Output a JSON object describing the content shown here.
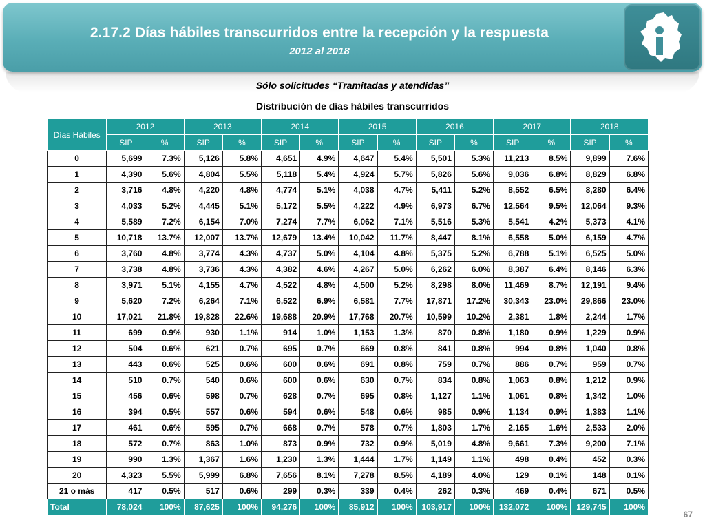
{
  "header": {
    "title": "2.17.2 Días hábiles transcurridos entre la recepción y la respuesta",
    "subtitle": "2012 al 2018",
    "logo_icon": "cdmx-map-info-icon"
  },
  "headings": {
    "filter": "Sólo solicitudes “Tramitadas y atendidas”",
    "table_title": "Distribución de días hábiles transcurridos"
  },
  "table": {
    "row_header": "Días Hábiles",
    "years": [
      "2012",
      "2013",
      "2014",
      "2015",
      "2016",
      "2017",
      "2018"
    ],
    "sub_headers": [
      "SIP",
      "%"
    ],
    "rows": [
      [
        "0",
        "5,699",
        "7.3%",
        "5,126",
        "5.8%",
        "4,651",
        "4.9%",
        "4,647",
        "5.4%",
        "5,501",
        "5.3%",
        "11,213",
        "8.5%",
        "9,899",
        "7.6%"
      ],
      [
        "1",
        "4,390",
        "5.6%",
        "4,804",
        "5.5%",
        "5,118",
        "5.4%",
        "4,924",
        "5.7%",
        "5,826",
        "5.6%",
        "9,036",
        "6.8%",
        "8,829",
        "6.8%"
      ],
      [
        "2",
        "3,716",
        "4.8%",
        "4,220",
        "4.8%",
        "4,774",
        "5.1%",
        "4,038",
        "4.7%",
        "5,411",
        "5.2%",
        "8,552",
        "6.5%",
        "8,280",
        "6.4%"
      ],
      [
        "3",
        "4,033",
        "5.2%",
        "4,445",
        "5.1%",
        "5,172",
        "5.5%",
        "4,222",
        "4.9%",
        "6,973",
        "6.7%",
        "12,564",
        "9.5%",
        "12,064",
        "9.3%"
      ],
      [
        "4",
        "5,589",
        "7.2%",
        "6,154",
        "7.0%",
        "7,274",
        "7.7%",
        "6,062",
        "7.1%",
        "5,516",
        "5.3%",
        "5,541",
        "4.2%",
        "5,373",
        "4.1%"
      ],
      [
        "5",
        "10,718",
        "13.7%",
        "12,007",
        "13.7%",
        "12,679",
        "13.4%",
        "10,042",
        "11.7%",
        "8,447",
        "8.1%",
        "6,558",
        "5.0%",
        "6,159",
        "4.7%"
      ],
      [
        "6",
        "3,760",
        "4.8%",
        "3,774",
        "4.3%",
        "4,737",
        "5.0%",
        "4,104",
        "4.8%",
        "5,375",
        "5.2%",
        "6,788",
        "5.1%",
        "6,525",
        "5.0%"
      ],
      [
        "7",
        "3,738",
        "4.8%",
        "3,736",
        "4.3%",
        "4,382",
        "4.6%",
        "4,267",
        "5.0%",
        "6,262",
        "6.0%",
        "8,387",
        "6.4%",
        "8,146",
        "6.3%"
      ],
      [
        "8",
        "3,971",
        "5.1%",
        "4,155",
        "4.7%",
        "4,522",
        "4.8%",
        "4,500",
        "5.2%",
        "8,298",
        "8.0%",
        "11,469",
        "8.7%",
        "12,191",
        "9.4%"
      ],
      [
        "9",
        "5,620",
        "7.2%",
        "6,264",
        "7.1%",
        "6,522",
        "6.9%",
        "6,581",
        "7.7%",
        "17,871",
        "17.2%",
        "30,343",
        "23.0%",
        "29,866",
        "23.0%"
      ],
      [
        "10",
        "17,021",
        "21.8%",
        "19,828",
        "22.6%",
        "19,688",
        "20.9%",
        "17,768",
        "20.7%",
        "10,599",
        "10.2%",
        "2,381",
        "1.8%",
        "2,244",
        "1.7%"
      ],
      [
        "11",
        "699",
        "0.9%",
        "930",
        "1.1%",
        "914",
        "1.0%",
        "1,153",
        "1.3%",
        "870",
        "0.8%",
        "1,180",
        "0.9%",
        "1,229",
        "0.9%"
      ],
      [
        "12",
        "504",
        "0.6%",
        "621",
        "0.7%",
        "695",
        "0.7%",
        "669",
        "0.8%",
        "841",
        "0.8%",
        "994",
        "0.8%",
        "1,040",
        "0.8%"
      ],
      [
        "13",
        "443",
        "0.6%",
        "525",
        "0.6%",
        "600",
        "0.6%",
        "691",
        "0.8%",
        "759",
        "0.7%",
        "886",
        "0.7%",
        "959",
        "0.7%"
      ],
      [
        "14",
        "510",
        "0.7%",
        "540",
        "0.6%",
        "600",
        "0.6%",
        "630",
        "0.7%",
        "834",
        "0.8%",
        "1,063",
        "0.8%",
        "1,212",
        "0.9%"
      ],
      [
        "15",
        "456",
        "0.6%",
        "598",
        "0.7%",
        "628",
        "0.7%",
        "695",
        "0.8%",
        "1,127",
        "1.1%",
        "1,061",
        "0.8%",
        "1,342",
        "1.0%"
      ],
      [
        "16",
        "394",
        "0.5%",
        "557",
        "0.6%",
        "594",
        "0.6%",
        "548",
        "0.6%",
        "985",
        "0.9%",
        "1,134",
        "0.9%",
        "1,383",
        "1.1%"
      ],
      [
        "17",
        "461",
        "0.6%",
        "595",
        "0.7%",
        "668",
        "0.7%",
        "578",
        "0.7%",
        "1,803",
        "1.7%",
        "2,165",
        "1.6%",
        "2,533",
        "2.0%"
      ],
      [
        "18",
        "572",
        "0.7%",
        "863",
        "1.0%",
        "873",
        "0.9%",
        "732",
        "0.9%",
        "5,019",
        "4.8%",
        "9,661",
        "7.3%",
        "9,200",
        "7.1%"
      ],
      [
        "19",
        "990",
        "1.3%",
        "1,367",
        "1.6%",
        "1,230",
        "1.3%",
        "1,444",
        "1.7%",
        "1,149",
        "1.1%",
        "498",
        "0.4%",
        "452",
        "0.3%"
      ],
      [
        "20",
        "4,323",
        "5.5%",
        "5,999",
        "6.8%",
        "7,656",
        "8.1%",
        "7,278",
        "8.5%",
        "4,189",
        "4.0%",
        "129",
        "0.1%",
        "148",
        "0.1%"
      ],
      [
        "21 o más",
        "417",
        "0.5%",
        "517",
        "0.6%",
        "299",
        "0.3%",
        "339",
        "0.4%",
        "262",
        "0.3%",
        "469",
        "0.4%",
        "671",
        "0.5%"
      ]
    ],
    "total": [
      "Total",
      "78,024",
      "100%",
      "87,625",
      "100%",
      "94,276",
      "100%",
      "85,912",
      "100%",
      "103,917",
      "100%",
      "132,072",
      "100%",
      "129,745",
      "100%"
    ]
  },
  "footer": {
    "page_number": "67"
  },
  "colors": {
    "banner": "#5aaeb7",
    "table_header": "#1f9d9b",
    "logo_box": "#3f8f99"
  }
}
